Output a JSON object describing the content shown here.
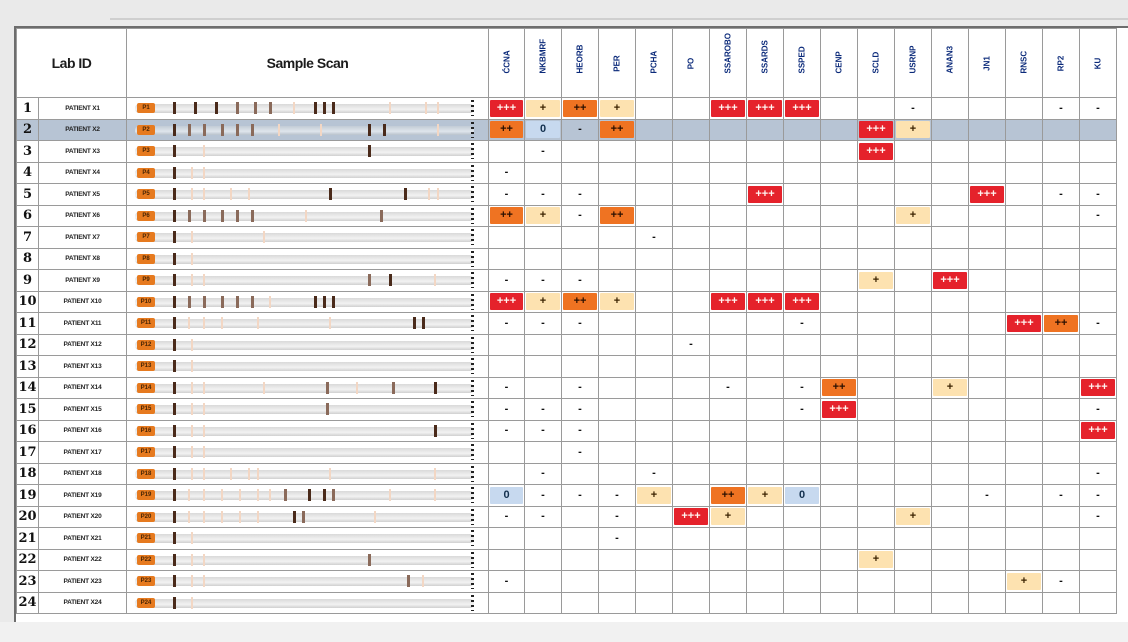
{
  "header": {
    "lab_id": "Lab ID",
    "sample_scan": "Sample Scan",
    "columns": [
      "ĆCNA",
      "NKBMRF",
      "HEORB",
      "PER",
      "PCHA",
      "PO",
      "SSAROBO",
      "SSARDS",
      "SSPED",
      "CENP",
      "SCLD",
      "USRNP",
      "ANAN3",
      "JN1",
      "RNSC",
      "RP2",
      "KU"
    ]
  },
  "colors": {
    "strong": "#e5222b",
    "medium": "#ef7322",
    "weak": "#fde2b0",
    "equivocal": "#c7d9ef",
    "scan_cap": "#e67a1f",
    "selected_row": "#b7c4d4"
  },
  "selected_row": 2,
  "rows": [
    {
      "n": "1",
      "id": "PATIENT X1",
      "cap": "P1",
      "marks": [
        [
          8,
          "dark"
        ],
        [
          15,
          "dark"
        ],
        [
          22,
          "dark"
        ],
        [
          29,
          "mid"
        ],
        [
          35,
          "mid"
        ],
        [
          40,
          "mid"
        ],
        [
          48,
          "pale"
        ],
        [
          55,
          "dark"
        ],
        [
          58,
          "dark"
        ],
        [
          61,
          "dark"
        ],
        [
          80,
          "pale"
        ],
        [
          92,
          "pale"
        ],
        [
          96,
          "pale"
        ]
      ],
      "cells": [
        "+++",
        "+",
        "++",
        "+",
        "",
        "",
        "+++",
        "+++",
        "+++",
        "",
        "",
        "-",
        "",
        "",
        "",
        "-",
        "-"
      ]
    },
    {
      "n": "2",
      "id": "PATIENT X2",
      "cap": "P2",
      "marks": [
        [
          8,
          "dark"
        ],
        [
          13,
          "mid"
        ],
        [
          18,
          "mid"
        ],
        [
          24,
          "mid"
        ],
        [
          29,
          "mid"
        ],
        [
          34,
          "mid"
        ],
        [
          43,
          "pale"
        ],
        [
          57,
          "pale"
        ],
        [
          73,
          "dark"
        ],
        [
          78,
          "dark"
        ],
        [
          96,
          "pale"
        ]
      ],
      "cells": [
        "++",
        "0",
        "-",
        "++",
        "",
        "",
        "",
        "",
        "",
        "",
        "+++",
        "+",
        "",
        "",
        "",
        "",
        ""
      ]
    },
    {
      "n": "3",
      "id": "PATIENT X3",
      "cap": "P3",
      "marks": [
        [
          8,
          "dark"
        ],
        [
          18,
          "pale"
        ],
        [
          73,
          "dark"
        ]
      ],
      "cells": [
        "",
        "-",
        "",
        "",
        "",
        "",
        "",
        "",
        "",
        "",
        "+++",
        "",
        "",
        "",
        "",
        "",
        ""
      ]
    },
    {
      "n": "4",
      "id": "PATIENT X4",
      "cap": "P4",
      "marks": [
        [
          8,
          "dark"
        ],
        [
          14,
          "pale"
        ],
        [
          18,
          "pale"
        ]
      ],
      "cells": [
        "-",
        "",
        "",
        "",
        "",
        "",
        "",
        "",
        "",
        "",
        "",
        "",
        "",
        "",
        "",
        "",
        ""
      ]
    },
    {
      "n": "5",
      "id": "PATIENT X5",
      "cap": "P5",
      "marks": [
        [
          8,
          "dark"
        ],
        [
          14,
          "pale"
        ],
        [
          18,
          "pale"
        ],
        [
          27,
          "pale"
        ],
        [
          33,
          "pale"
        ],
        [
          60,
          "dark"
        ],
        [
          85,
          "dark"
        ],
        [
          93,
          "pale"
        ],
        [
          96,
          "pale"
        ]
      ],
      "cells": [
        "-",
        "-",
        "-",
        "",
        "",
        "",
        "",
        "+++",
        "",
        "",
        "",
        "",
        "",
        "+++",
        "",
        "-",
        "-"
      ]
    },
    {
      "n": "6",
      "id": "PATIENT X6",
      "cap": "P6",
      "marks": [
        [
          8,
          "dark"
        ],
        [
          13,
          "mid"
        ],
        [
          18,
          "mid"
        ],
        [
          24,
          "mid"
        ],
        [
          29,
          "mid"
        ],
        [
          34,
          "mid"
        ],
        [
          52,
          "pale"
        ],
        [
          77,
          "mid"
        ]
      ],
      "cells": [
        "++",
        "+",
        "-",
        "++",
        "",
        "",
        "",
        "",
        "",
        "",
        "",
        "+",
        "",
        "",
        "",
        "",
        "-"
      ]
    },
    {
      "n": "7",
      "id": "PATIENT X7",
      "cap": "P7",
      "marks": [
        [
          8,
          "dark"
        ],
        [
          14,
          "pale"
        ],
        [
          38,
          "pale"
        ]
      ],
      "cells": [
        "",
        "",
        "",
        "",
        "-",
        "",
        "",
        "",
        "",
        "",
        "",
        "",
        "",
        "",
        "",
        "",
        ""
      ]
    },
    {
      "n": "8",
      "id": "PATIENT X8",
      "cap": "P8",
      "marks": [
        [
          8,
          "dark"
        ],
        [
          14,
          "pale"
        ]
      ],
      "cells": [
        "",
        "",
        "",
        "",
        "",
        "",
        "",
        "",
        "",
        "",
        "",
        "",
        "",
        "",
        "",
        "",
        ""
      ]
    },
    {
      "n": "9",
      "id": "PATIENT X9",
      "cap": "P9",
      "marks": [
        [
          8,
          "dark"
        ],
        [
          14,
          "pale"
        ],
        [
          18,
          "pale"
        ],
        [
          73,
          "mid"
        ],
        [
          80,
          "dark"
        ],
        [
          95,
          "pale"
        ]
      ],
      "cells": [
        "-",
        "-",
        "-",
        "",
        "",
        "",
        "",
        "",
        "",
        "",
        "+",
        "",
        "+++",
        "",
        "",
        "",
        ""
      ]
    },
    {
      "n": "10",
      "id": "PATIENT X10",
      "cap": "P10",
      "marks": [
        [
          8,
          "dark"
        ],
        [
          13,
          "mid"
        ],
        [
          18,
          "mid"
        ],
        [
          24,
          "mid"
        ],
        [
          29,
          "mid"
        ],
        [
          34,
          "mid"
        ],
        [
          40,
          "pale"
        ],
        [
          55,
          "dark"
        ],
        [
          58,
          "dark"
        ],
        [
          61,
          "dark"
        ]
      ],
      "cells": [
        "+++",
        "+",
        "++",
        "+",
        "",
        "",
        "+++",
        "+++",
        "+++",
        "",
        "",
        "",
        "",
        "",
        "",
        "",
        ""
      ]
    },
    {
      "n": "11",
      "id": "PATIENT X11",
      "cap": "P11",
      "marks": [
        [
          8,
          "dark"
        ],
        [
          13,
          "pale"
        ],
        [
          18,
          "pale"
        ],
        [
          24,
          "pale"
        ],
        [
          36,
          "pale"
        ],
        [
          60,
          "pale"
        ],
        [
          88,
          "dark"
        ],
        [
          91,
          "dark"
        ]
      ],
      "cells": [
        "-",
        "-",
        "-",
        "",
        "",
        "",
        "",
        "",
        "-",
        "",
        "",
        "",
        "",
        "",
        "+++",
        "++",
        "-"
      ]
    },
    {
      "n": "12",
      "id": "PATIENT X12",
      "cap": "P12",
      "marks": [
        [
          8,
          "dark"
        ],
        [
          14,
          "pale"
        ]
      ],
      "cells": [
        "",
        "",
        "",
        "",
        "",
        "-",
        "",
        "",
        "",
        "",
        "",
        "",
        "",
        "",
        "",
        "",
        ""
      ]
    },
    {
      "n": "13",
      "id": "PATIENT X13",
      "cap": "P13",
      "marks": [
        [
          8,
          "dark"
        ],
        [
          14,
          "pale"
        ]
      ],
      "cells": [
        "",
        "",
        "",
        "",
        "",
        "",
        "",
        "",
        "",
        "",
        "",
        "",
        "",
        "",
        "",
        "",
        ""
      ]
    },
    {
      "n": "14",
      "id": "PATIENT X14",
      "cap": "P14",
      "marks": [
        [
          8,
          "dark"
        ],
        [
          14,
          "pale"
        ],
        [
          18,
          "pale"
        ],
        [
          38,
          "pale"
        ],
        [
          59,
          "mid"
        ],
        [
          69,
          "pale"
        ],
        [
          81,
          "mid"
        ],
        [
          95,
          "dark"
        ]
      ],
      "cells": [
        "-",
        "",
        "-",
        "",
        "",
        "",
        "-",
        "",
        "-",
        "++",
        "",
        "",
        "+",
        "",
        "",
        "",
        "+++"
      ]
    },
    {
      "n": "15",
      "id": "PATIENT X15",
      "cap": "P15",
      "marks": [
        [
          8,
          "dark"
        ],
        [
          14,
          "pale"
        ],
        [
          18,
          "pale"
        ],
        [
          59,
          "mid"
        ]
      ],
      "cells": [
        "-",
        "-",
        "-",
        "",
        "",
        "",
        "",
        "",
        "-",
        "+++",
        "",
        "",
        "",
        "",
        "",
        "",
        "-"
      ]
    },
    {
      "n": "16",
      "id": "PATIENT X16",
      "cap": "P16",
      "marks": [
        [
          8,
          "dark"
        ],
        [
          14,
          "pale"
        ],
        [
          18,
          "pale"
        ],
        [
          95,
          "dark"
        ]
      ],
      "cells": [
        "-",
        "-",
        "-",
        "",
        "",
        "",
        "",
        "",
        "",
        "",
        "",
        "",
        "",
        "",
        "",
        "",
        "+++"
      ]
    },
    {
      "n": "17",
      "id": "PATIENT X17",
      "cap": "P17",
      "marks": [
        [
          8,
          "dark"
        ],
        [
          14,
          "pale"
        ],
        [
          18,
          "pale"
        ]
      ],
      "cells": [
        "",
        "",
        "-",
        "",
        "",
        "",
        "",
        "",
        "",
        "",
        "",
        "",
        "",
        "",
        "",
        "",
        ""
      ]
    },
    {
      "n": "18",
      "id": "PATIENT X18",
      "cap": "P18",
      "marks": [
        [
          8,
          "dark"
        ],
        [
          14,
          "pale"
        ],
        [
          18,
          "pale"
        ],
        [
          27,
          "pale"
        ],
        [
          33,
          "pale"
        ],
        [
          36,
          "pale"
        ],
        [
          60,
          "pale"
        ],
        [
          95,
          "pale"
        ]
      ],
      "cells": [
        "",
        "-",
        "",
        "",
        "-",
        "",
        "",
        "",
        "",
        "",
        "",
        "",
        "",
        "",
        "",
        "",
        "-"
      ]
    },
    {
      "n": "19",
      "id": "PATIENT X19",
      "cap": "P19",
      "marks": [
        [
          8,
          "dark"
        ],
        [
          13,
          "pale"
        ],
        [
          18,
          "pale"
        ],
        [
          24,
          "pale"
        ],
        [
          30,
          "pale"
        ],
        [
          36,
          "pale"
        ],
        [
          40,
          "pale"
        ],
        [
          45,
          "mid"
        ],
        [
          53,
          "dark"
        ],
        [
          58,
          "dark"
        ],
        [
          61,
          "mid"
        ],
        [
          80,
          "pale"
        ],
        [
          95,
          "pale"
        ]
      ],
      "cells": [
        "0",
        "-",
        "-",
        "-",
        "+",
        "",
        "++",
        "+",
        "0",
        "",
        "",
        "",
        "",
        "-",
        "",
        "-",
        "-"
      ]
    },
    {
      "n": "20",
      "id": "PATIENT X20",
      "cap": "P20",
      "marks": [
        [
          8,
          "dark"
        ],
        [
          13,
          "pale"
        ],
        [
          18,
          "pale"
        ],
        [
          24,
          "pale"
        ],
        [
          30,
          "pale"
        ],
        [
          36,
          "pale"
        ],
        [
          48,
          "dark"
        ],
        [
          51,
          "mid"
        ],
        [
          75,
          "pale"
        ]
      ],
      "cells": [
        "-",
        "-",
        "",
        "-",
        "",
        "+++",
        "+",
        "",
        "",
        "",
        "",
        "+",
        "",
        "",
        "",
        "",
        "-"
      ]
    },
    {
      "n": "21",
      "id": "PATIENT X21",
      "cap": "P21",
      "marks": [
        [
          8,
          "dark"
        ],
        [
          14,
          "pale"
        ]
      ],
      "cells": [
        "",
        "",
        "",
        "-",
        "",
        "",
        "",
        "",
        "",
        "",
        "",
        "",
        "",
        "",
        "",
        "",
        ""
      ]
    },
    {
      "n": "22",
      "id": "PATIENT X22",
      "cap": "P22",
      "marks": [
        [
          8,
          "dark"
        ],
        [
          14,
          "pale"
        ],
        [
          18,
          "pale"
        ],
        [
          73,
          "mid"
        ]
      ],
      "cells": [
        "",
        "",
        "",
        "",
        "",
        "",
        "",
        "",
        "",
        "",
        "+",
        "",
        "",
        "",
        "",
        "",
        ""
      ]
    },
    {
      "n": "23",
      "id": "PATIENT X23",
      "cap": "P23",
      "marks": [
        [
          8,
          "dark"
        ],
        [
          14,
          "pale"
        ],
        [
          18,
          "pale"
        ],
        [
          86,
          "mid"
        ],
        [
          91,
          "pale"
        ]
      ],
      "cells": [
        "-",
        "",
        "",
        "",
        "",
        "",
        "",
        "",
        "",
        "",
        "",
        "",
        "",
        "",
        "+",
        "-",
        ""
      ]
    },
    {
      "n": "24",
      "id": "PATIENT X24",
      "cap": "P24",
      "marks": [
        [
          8,
          "dark"
        ],
        [
          14,
          "pale"
        ]
      ],
      "cells": [
        "",
        "",
        "",
        "",
        "",
        "",
        "",
        "",
        "",
        "",
        "",
        "",
        "",
        "",
        "",
        "",
        ""
      ]
    }
  ]
}
